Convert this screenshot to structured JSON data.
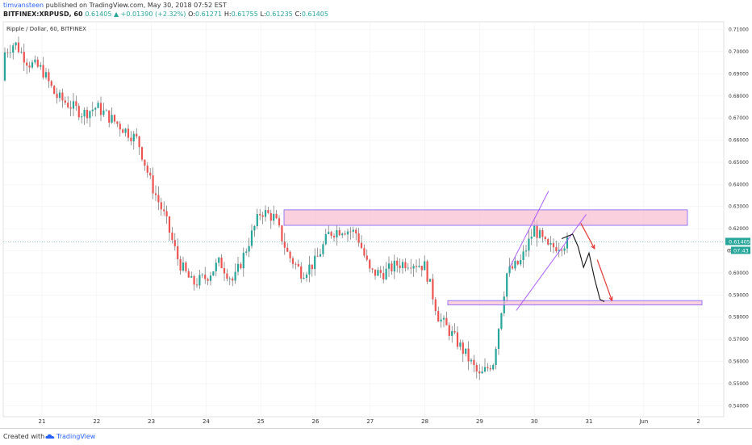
{
  "header": {
    "user": "timvansteen",
    "published_text": "published on TradingView.com, May 30, 2018 07:52 EST",
    "symbol_line": "BITFINEX:XRPUSD, 60",
    "change": "0.61405 ▲ +0.01390 (+2.32%)",
    "ohlc_o_label": "O:",
    "ohlc_o": "0.61271",
    "ohlc_h_label": "H:",
    "ohlc_h": "0.61755",
    "ohlc_l_label": "L:",
    "ohlc_l": "0.61235",
    "ohlc_c_label": "C:",
    "ohlc_c": "0.61405"
  },
  "footer": {
    "created_with": "Created with",
    "brand": "TradingView"
  },
  "colors": {
    "up": "#26a69a",
    "down": "#ef5350",
    "wick": "#555555",
    "zone_fill": "#f8bbd0",
    "zone_border": "#7b61ff",
    "wedge": "#a64dff",
    "arrow": "#e53935",
    "price_tag": "#26a69a"
  },
  "chart_data": {
    "type": "candlestick",
    "title": "Ripple / Dollar, 60, BITFINEX",
    "xlabel": "",
    "ylabel": "",
    "ylim": [
      0.535,
      0.7135
    ],
    "y_ticks": [
      "0.71000",
      "0.70000",
      "0.69000",
      "0.68000",
      "0.67000",
      "0.66000",
      "0.65000",
      "0.64000",
      "0.63000",
      "0.62000",
      "0.61000",
      "0.60000",
      "0.59000",
      "0.58000",
      "0.57000",
      "0.56000",
      "0.55000",
      "0.54000"
    ],
    "x_ticks": [
      "21",
      "22",
      "23",
      "24",
      "25",
      "26",
      "27",
      "28",
      "29",
      "30",
      "31",
      "Jun",
      "2"
    ],
    "last_price": "0.61405",
    "countdown": "07:43",
    "countdown_prefix": "0",
    "price_series_day": [
      20.0,
      20.25,
      20.5,
      20.75,
      21.0,
      21.25,
      21.5,
      21.75,
      22.0,
      22.25,
      22.5,
      22.75,
      23.0,
      23.25,
      23.5,
      23.75,
      24.0,
      24.25,
      24.5,
      24.75,
      25.0,
      25.25,
      25.5,
      25.75,
      26.0,
      26.25,
      26.5,
      26.75,
      27.0,
      27.25,
      27.5,
      27.75,
      28.0,
      28.25,
      28.5,
      28.75,
      29.0,
      29.25,
      29.5,
      29.75,
      30.0,
      30.25,
      30.5,
      30.65
    ],
    "price_series_close": [
      0.687,
      0.698,
      0.704,
      0.695,
      0.692,
      0.68,
      0.676,
      0.672,
      0.675,
      0.67,
      0.665,
      0.66,
      0.64,
      0.625,
      0.605,
      0.595,
      0.598,
      0.605,
      0.596,
      0.612,
      0.628,
      0.625,
      0.608,
      0.6,
      0.605,
      0.618,
      0.62,
      0.618,
      0.6,
      0.6,
      0.604,
      0.605,
      0.603,
      0.58,
      0.572,
      0.563,
      0.553,
      0.56,
      0.6,
      0.605,
      0.62,
      0.611,
      0.613,
      0.614
    ],
    "resistance_zone": [
      0.6215,
      0.6285
    ],
    "support_zone": [
      0.5855,
      0.5875
    ]
  }
}
